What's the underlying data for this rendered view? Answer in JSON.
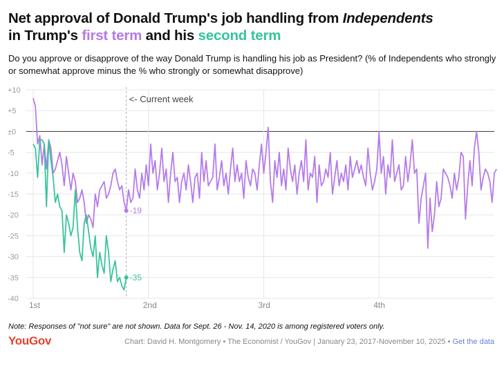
{
  "title": {
    "part1": "Net approval of Donald Trump's job handling from ",
    "part2_italic": "Independents",
    "part3": "in Trump's ",
    "first_term": "first term",
    "part4": " and his ",
    "second_term": "second term"
  },
  "subtitle": "Do you approve or disapprove of the way Donald Trump is handling his job as President? (% of Independents who strongly or somewhat approve minus the % who strongly or somewhat disapprove)",
  "note": "Note: Responses of \"not sure\" are not shown. Data for Sept. 26 - Nov. 14, 2020 is among registered voters only.",
  "brand": "YouGov",
  "credit": {
    "text": "Chart: David H. Montgomery • The Economist / YouGov | January 23, 2017-November 10, 2025 • ",
    "link": "Get the data"
  },
  "colors": {
    "first_term": "#b57be8",
    "second_term": "#37c49d",
    "zero_line": "#333333",
    "gridline": "#e6e6e6",
    "current_week_line": "#aaaaaa"
  },
  "chart_data": {
    "type": "line",
    "title": "Net approval of Donald Trump's job handling from Independents",
    "xlabel": "",
    "ylabel": "",
    "ylim": [
      -40,
      10
    ],
    "yticks": [
      "+10",
      "+5",
      "±0",
      "-5",
      "-10",
      "-15",
      "-20",
      "-25",
      "-30",
      "-35",
      "-40"
    ],
    "x_unit": "week of year in office",
    "xlim": [
      0,
      208
    ],
    "x_ticks": [
      {
        "x": 0,
        "label": "1st"
      },
      {
        "x": 52,
        "label": "2nd"
      },
      {
        "x": 104,
        "label": "3rd"
      },
      {
        "x": 156,
        "label": "4th"
      }
    ],
    "current_week": {
      "x": 42,
      "label": "<- Current week"
    },
    "series": [
      {
        "name": "first term",
        "color": "#b57be8",
        "end_label": "-19",
        "end_label_index": 42,
        "values": [
          8,
          6,
          -3,
          -1,
          -8,
          -3,
          -9,
          -2,
          -4,
          -10,
          -9,
          -7,
          -5,
          -8,
          -13,
          -6,
          -10,
          -14,
          -10,
          -12,
          -17,
          -16,
          -14,
          -17,
          -22,
          -20,
          -21,
          -23,
          -15,
          -18,
          -14,
          -13,
          -12,
          -16,
          -15,
          -13,
          -10,
          -9,
          -12,
          -14,
          -13,
          -17,
          -19,
          -14,
          -17,
          -16,
          -9,
          -14,
          -16,
          -10,
          -14,
          -8,
          -13,
          -3,
          -10,
          -7,
          -14,
          -10,
          -4,
          -12,
          -9,
          -17,
          -10,
          -5,
          -12,
          -11,
          -17,
          -12,
          -10,
          -14,
          -8,
          -12,
          -17,
          -11,
          -10,
          -16,
          -5,
          -12,
          -7,
          -13,
          -12,
          -11,
          -3,
          -14,
          -11,
          -7,
          -13,
          -10,
          -15,
          -9,
          -4,
          -12,
          -8,
          -12,
          -10,
          -16,
          -7,
          -11,
          -13,
          -9,
          -10,
          -14,
          -8,
          -3,
          -10,
          -5,
          1,
          -12,
          -17,
          -7,
          -11,
          -5,
          -13,
          -9,
          -14,
          -4,
          -9,
          -12,
          -8,
          -15,
          -10,
          -7,
          -12,
          -2,
          -14,
          -10,
          -11,
          -6,
          -17,
          -8,
          -13,
          -12,
          -9,
          -11,
          -5,
          -15,
          -11,
          -7,
          -13,
          -10,
          -12,
          -8,
          -14,
          -6,
          -11,
          -9,
          -7,
          -10,
          -8,
          -11,
          -13,
          -4,
          -10,
          -14,
          -12,
          -9,
          0,
          -10,
          -6,
          -15,
          -8,
          -11,
          -2,
          -12,
          -10,
          -8,
          -14,
          -13,
          -6,
          -12,
          -8,
          -2,
          -10,
          -9,
          -22,
          -16,
          -13,
          -10,
          -28,
          -16,
          -24,
          -20,
          -12,
          -18,
          -16,
          -9,
          -10,
          -11,
          -13,
          -16,
          -10,
          -14,
          -11,
          -5,
          -6,
          -21,
          -13,
          -7,
          -13,
          -4,
          0,
          -5,
          -14,
          -11,
          -9,
          -10,
          -12,
          -17,
          -10,
          -9
        ]
      },
      {
        "name": "second term",
        "color": "#37c49d",
        "end_label": "-35",
        "end_label_index": 42,
        "values": [
          -3,
          -4,
          -11,
          -2,
          -2,
          -3,
          -18,
          -2,
          -7,
          -11,
          -17,
          -15,
          -18,
          -19,
          -29,
          -20,
          -22,
          -25,
          -23,
          -14,
          -23,
          -29,
          -31,
          -22,
          -20,
          -24,
          -28,
          -30,
          -25,
          -35,
          -29,
          -32,
          -34,
          -25,
          -29,
          -36,
          -33,
          -31,
          -36,
          -35,
          -37,
          -38,
          -35
        ]
      }
    ]
  }
}
